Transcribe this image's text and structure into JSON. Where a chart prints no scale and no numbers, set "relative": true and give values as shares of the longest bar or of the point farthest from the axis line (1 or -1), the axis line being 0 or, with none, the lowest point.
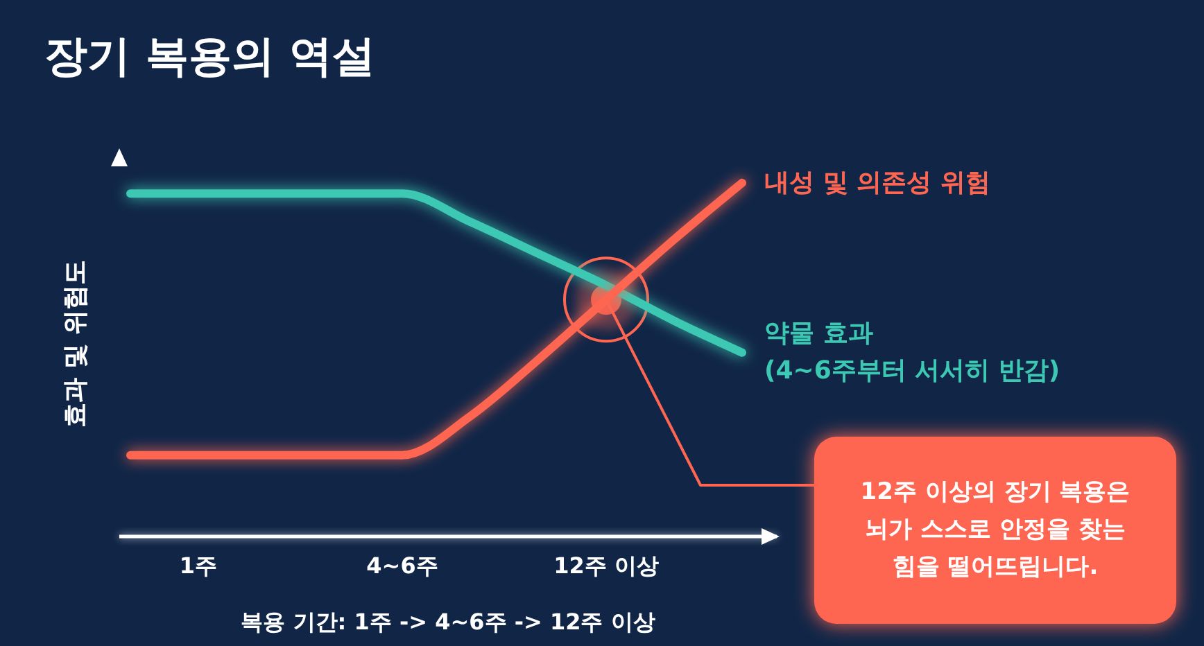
{
  "chart_data": {
    "type": "line",
    "title": "장기 복용의 역설",
    "xlabel": "복용 기간: 1주 -> 4~6주 -> 12주 이상",
    "ylabel": "효과 및 위험도",
    "categories": [
      null,
      "1주",
      null,
      null,
      "4~6주",
      null,
      null,
      "12주 이상",
      null,
      null
    ],
    "relative": true,
    "series": [
      {
        "name": "약물 효과\n(4~6주부터 서서히 반감)",
        "color": "#3cc8b2",
        "values": [
          0.97,
          0.97,
          0.97,
          0.97,
          0.97,
          0.89,
          0.8,
          0.71,
          0.61,
          0.52
        ]
      },
      {
        "name": "내성 및 의존성 위험",
        "color": "#ff6652",
        "values": [
          0.23,
          0.23,
          0.23,
          0.23,
          0.23,
          0.34,
          0.5,
          0.67,
          0.84,
          1
        ]
      }
    ],
    "annotations": [
      {
        "text": "12주 이상의 장기 복용은 뇌가 스스로 안정을 찾는 힘을 떨어뜨립니다.",
        "x": "12주 이상",
        "y": 0.67
      }
    ],
    "legend": false,
    "grid": false,
    "marker": "none",
    "line_style": "solid"
  }
}
